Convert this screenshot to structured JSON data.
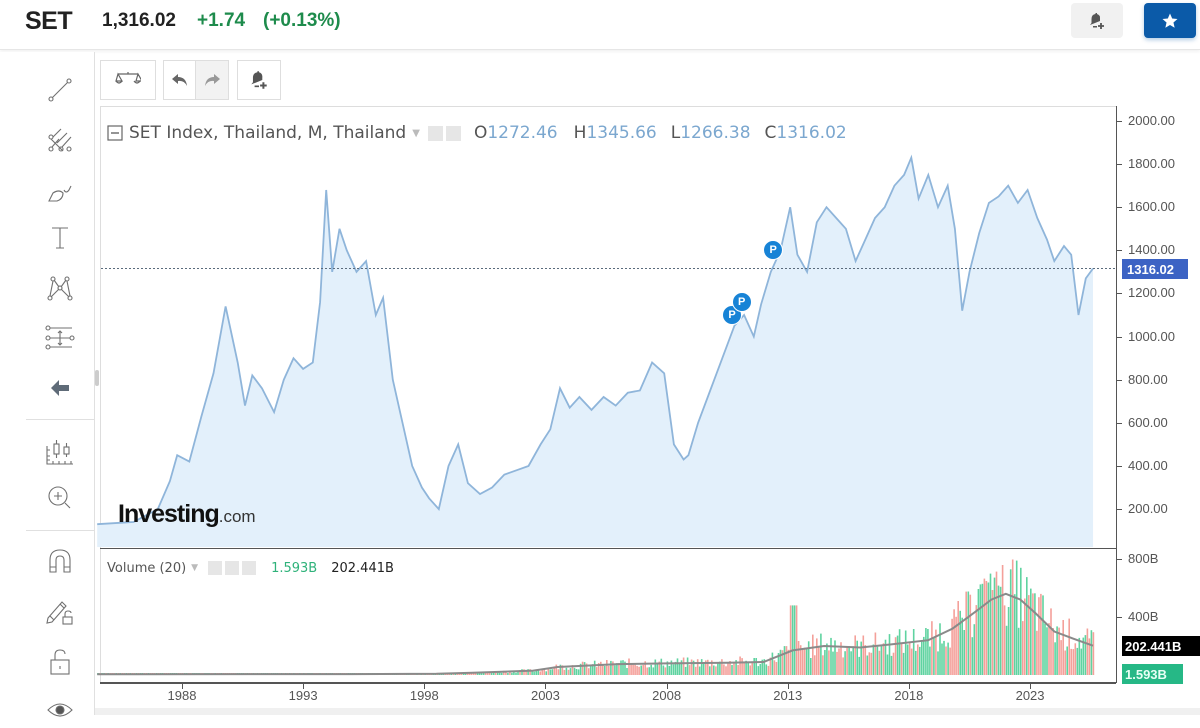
{
  "header": {
    "symbol": "SET",
    "price": "1,316.02",
    "change": "+1.74",
    "change_pct": "(+0.13%)",
    "alert_button_icon": "bell-plus-icon",
    "watchlist_button_icon": "star-icon",
    "accent_color": "#0b5aa8",
    "positive_color": "#1e8b4c"
  },
  "left_toolbar": {
    "items": [
      {
        "name": "trend-line-tool",
        "icon": "trend-line-icon"
      },
      {
        "name": "pitchfork-tool",
        "icon": "pitchfork-icon"
      },
      {
        "name": "brush-tool",
        "icon": "brush-icon"
      },
      {
        "name": "text-tool",
        "icon": "text-icon"
      },
      {
        "name": "pattern-tool",
        "icon": "pattern-icon"
      },
      {
        "name": "prediction-tool",
        "icon": "measure-icon"
      },
      {
        "name": "hide-toolbar",
        "icon": "arrow-left-icon"
      },
      {
        "name": "chart-type",
        "icon": "candles-icon"
      },
      {
        "name": "zoom-in",
        "icon": "zoom-in-icon"
      },
      {
        "name": "magnet-mode",
        "icon": "magnet-icon"
      },
      {
        "name": "lock-drawings",
        "icon": "pencil-lock-icon"
      },
      {
        "name": "lock-all",
        "icon": "unlock-icon"
      },
      {
        "name": "hide-drawings",
        "icon": "eye-icon"
      }
    ]
  },
  "top_toolbar": {
    "compare_icon": "scales-icon",
    "undo_icon": "undo-icon",
    "redo_icon": "redo-icon",
    "alert_icon": "bell-plus-icon"
  },
  "legend": {
    "title": "SET Index, Thailand, M, Thailand",
    "open_label": "O",
    "open": "1272.46",
    "high_label": "H",
    "high": "1345.66",
    "low_label": "L",
    "low": "1266.38",
    "close_label": "C",
    "close": "1316.02"
  },
  "volume_legend": {
    "title": "Volume (20)",
    "value": "1.593B",
    "ma_value": "202.441B"
  },
  "price_axis": {
    "labels": [
      "2000.00",
      "1800.00",
      "1600.00",
      "1400.00",
      "1200.00",
      "1000.00",
      "800.00",
      "600.00",
      "400.00",
      "200.00"
    ],
    "last_price_tag": "1316.02"
  },
  "volume_axis": {
    "labels": [
      "800B",
      "400B"
    ],
    "ma_tag": "202.441B",
    "volume_tag": "1.593B"
  },
  "time_axis": {
    "labels": [
      "1988",
      "1993",
      "1998",
      "2003",
      "2008",
      "2013",
      "2018",
      "2023"
    ]
  },
  "watermark": {
    "brand": "Investing",
    "suffix": ".com"
  },
  "markers": [
    {
      "label": "P",
      "year": 2010.7,
      "value": 1100
    },
    {
      "label": "P",
      "year": 2011.1,
      "value": 1160
    },
    {
      "label": "P",
      "year": 2012.4,
      "value": 1400
    }
  ],
  "chart_data": {
    "type": "area",
    "title": "SET Index, Thailand, M, Thailand",
    "xlabel": "",
    "ylabel": "",
    "ylim": [
      0,
      2000
    ],
    "grid": false,
    "last_price": 1316.02,
    "line_color": "#8fb5da",
    "fill_color": "#e3f0fb",
    "x": [
      1984.5,
      1986.0,
      1987.0,
      1987.5,
      1987.8,
      1988.3,
      1988.8,
      1989.3,
      1989.8,
      1990.3,
      1990.6,
      1990.9,
      1991.3,
      1991.8,
      1992.2,
      1992.6,
      1993.0,
      1993.4,
      1993.7,
      1993.95,
      1994.2,
      1994.5,
      1994.8,
      1995.2,
      1995.6,
      1996.0,
      1996.3,
      1996.7,
      1997.1,
      1997.5,
      1997.9,
      1998.2,
      1998.6,
      1999.0,
      1999.4,
      1999.8,
      2000.3,
      2000.8,
      2001.3,
      2001.8,
      2002.3,
      2002.8,
      2003.2,
      2003.6,
      2004.0,
      2004.4,
      2004.9,
      2005.4,
      2005.9,
      2006.4,
      2006.9,
      2007.4,
      2007.9,
      2008.3,
      2008.7,
      2008.9,
      2009.3,
      2009.8,
      2010.3,
      2010.8,
      2011.2,
      2011.6,
      2011.9,
      2012.3,
      2012.7,
      2013.1,
      2013.4,
      2013.8,
      2014.2,
      2014.6,
      2015.0,
      2015.4,
      2015.8,
      2016.2,
      2016.6,
      2017.0,
      2017.4,
      2017.8,
      2018.1,
      2018.4,
      2018.8,
      2019.2,
      2019.6,
      2019.9,
      2020.2,
      2020.5,
      2020.9,
      2021.3,
      2021.7,
      2022.1,
      2022.5,
      2022.9,
      2023.3,
      2023.7,
      2024.0,
      2024.4,
      2024.7,
      2025.0,
      2025.3,
      2025.6
    ],
    "values": [
      130,
      140,
      200,
      330,
      450,
      420,
      630,
      830,
      1140,
      880,
      680,
      820,
      760,
      650,
      800,
      900,
      850,
      880,
      1160,
      1680,
      1300,
      1500,
      1400,
      1300,
      1350,
      1100,
      1180,
      800,
      600,
      400,
      300,
      250,
      200,
      400,
      500,
      320,
      270,
      300,
      360,
      380,
      400,
      500,
      570,
      760,
      670,
      720,
      660,
      720,
      680,
      740,
      750,
      880,
      830,
      500,
      430,
      450,
      600,
      750,
      900,
      1050,
      1100,
      1000,
      1150,
      1300,
      1400,
      1600,
      1380,
      1300,
      1530,
      1600,
      1550,
      1500,
      1350,
      1450,
      1550,
      1600,
      1700,
      1750,
      1830,
      1640,
      1750,
      1600,
      1700,
      1500,
      1120,
      1300,
      1480,
      1620,
      1650,
      1700,
      1620,
      1680,
      1550,
      1450,
      1350,
      1420,
      1380,
      1100,
      1270,
      1316
    ]
  },
  "volume_data": {
    "ma_points": [
      [
        1984.5,
        5
      ],
      [
        1995,
        6
      ],
      [
        1998.5,
        8
      ],
      [
        2000,
        15
      ],
      [
        2002.5,
        30
      ],
      [
        2003.5,
        55
      ],
      [
        2006,
        75
      ],
      [
        2008,
        80
      ],
      [
        2010.5,
        85
      ],
      [
        2012,
        90
      ],
      [
        2013.2,
        170
      ],
      [
        2014.5,
        200
      ],
      [
        2016,
        190
      ],
      [
        2017.5,
        215
      ],
      [
        2018.8,
        240
      ],
      [
        2019.8,
        320
      ],
      [
        2020.7,
        430
      ],
      [
        2021.4,
        520
      ],
      [
        2022.0,
        560
      ],
      [
        2022.6,
        520
      ],
      [
        2023.2,
        430
      ],
      [
        2024.0,
        300
      ],
      [
        2024.8,
        250
      ],
      [
        2025.6,
        202
      ]
    ],
    "up_color": "#5fd3a0",
    "down_color": "#f4a09a",
    "ma_color": "#8a8a8a"
  }
}
